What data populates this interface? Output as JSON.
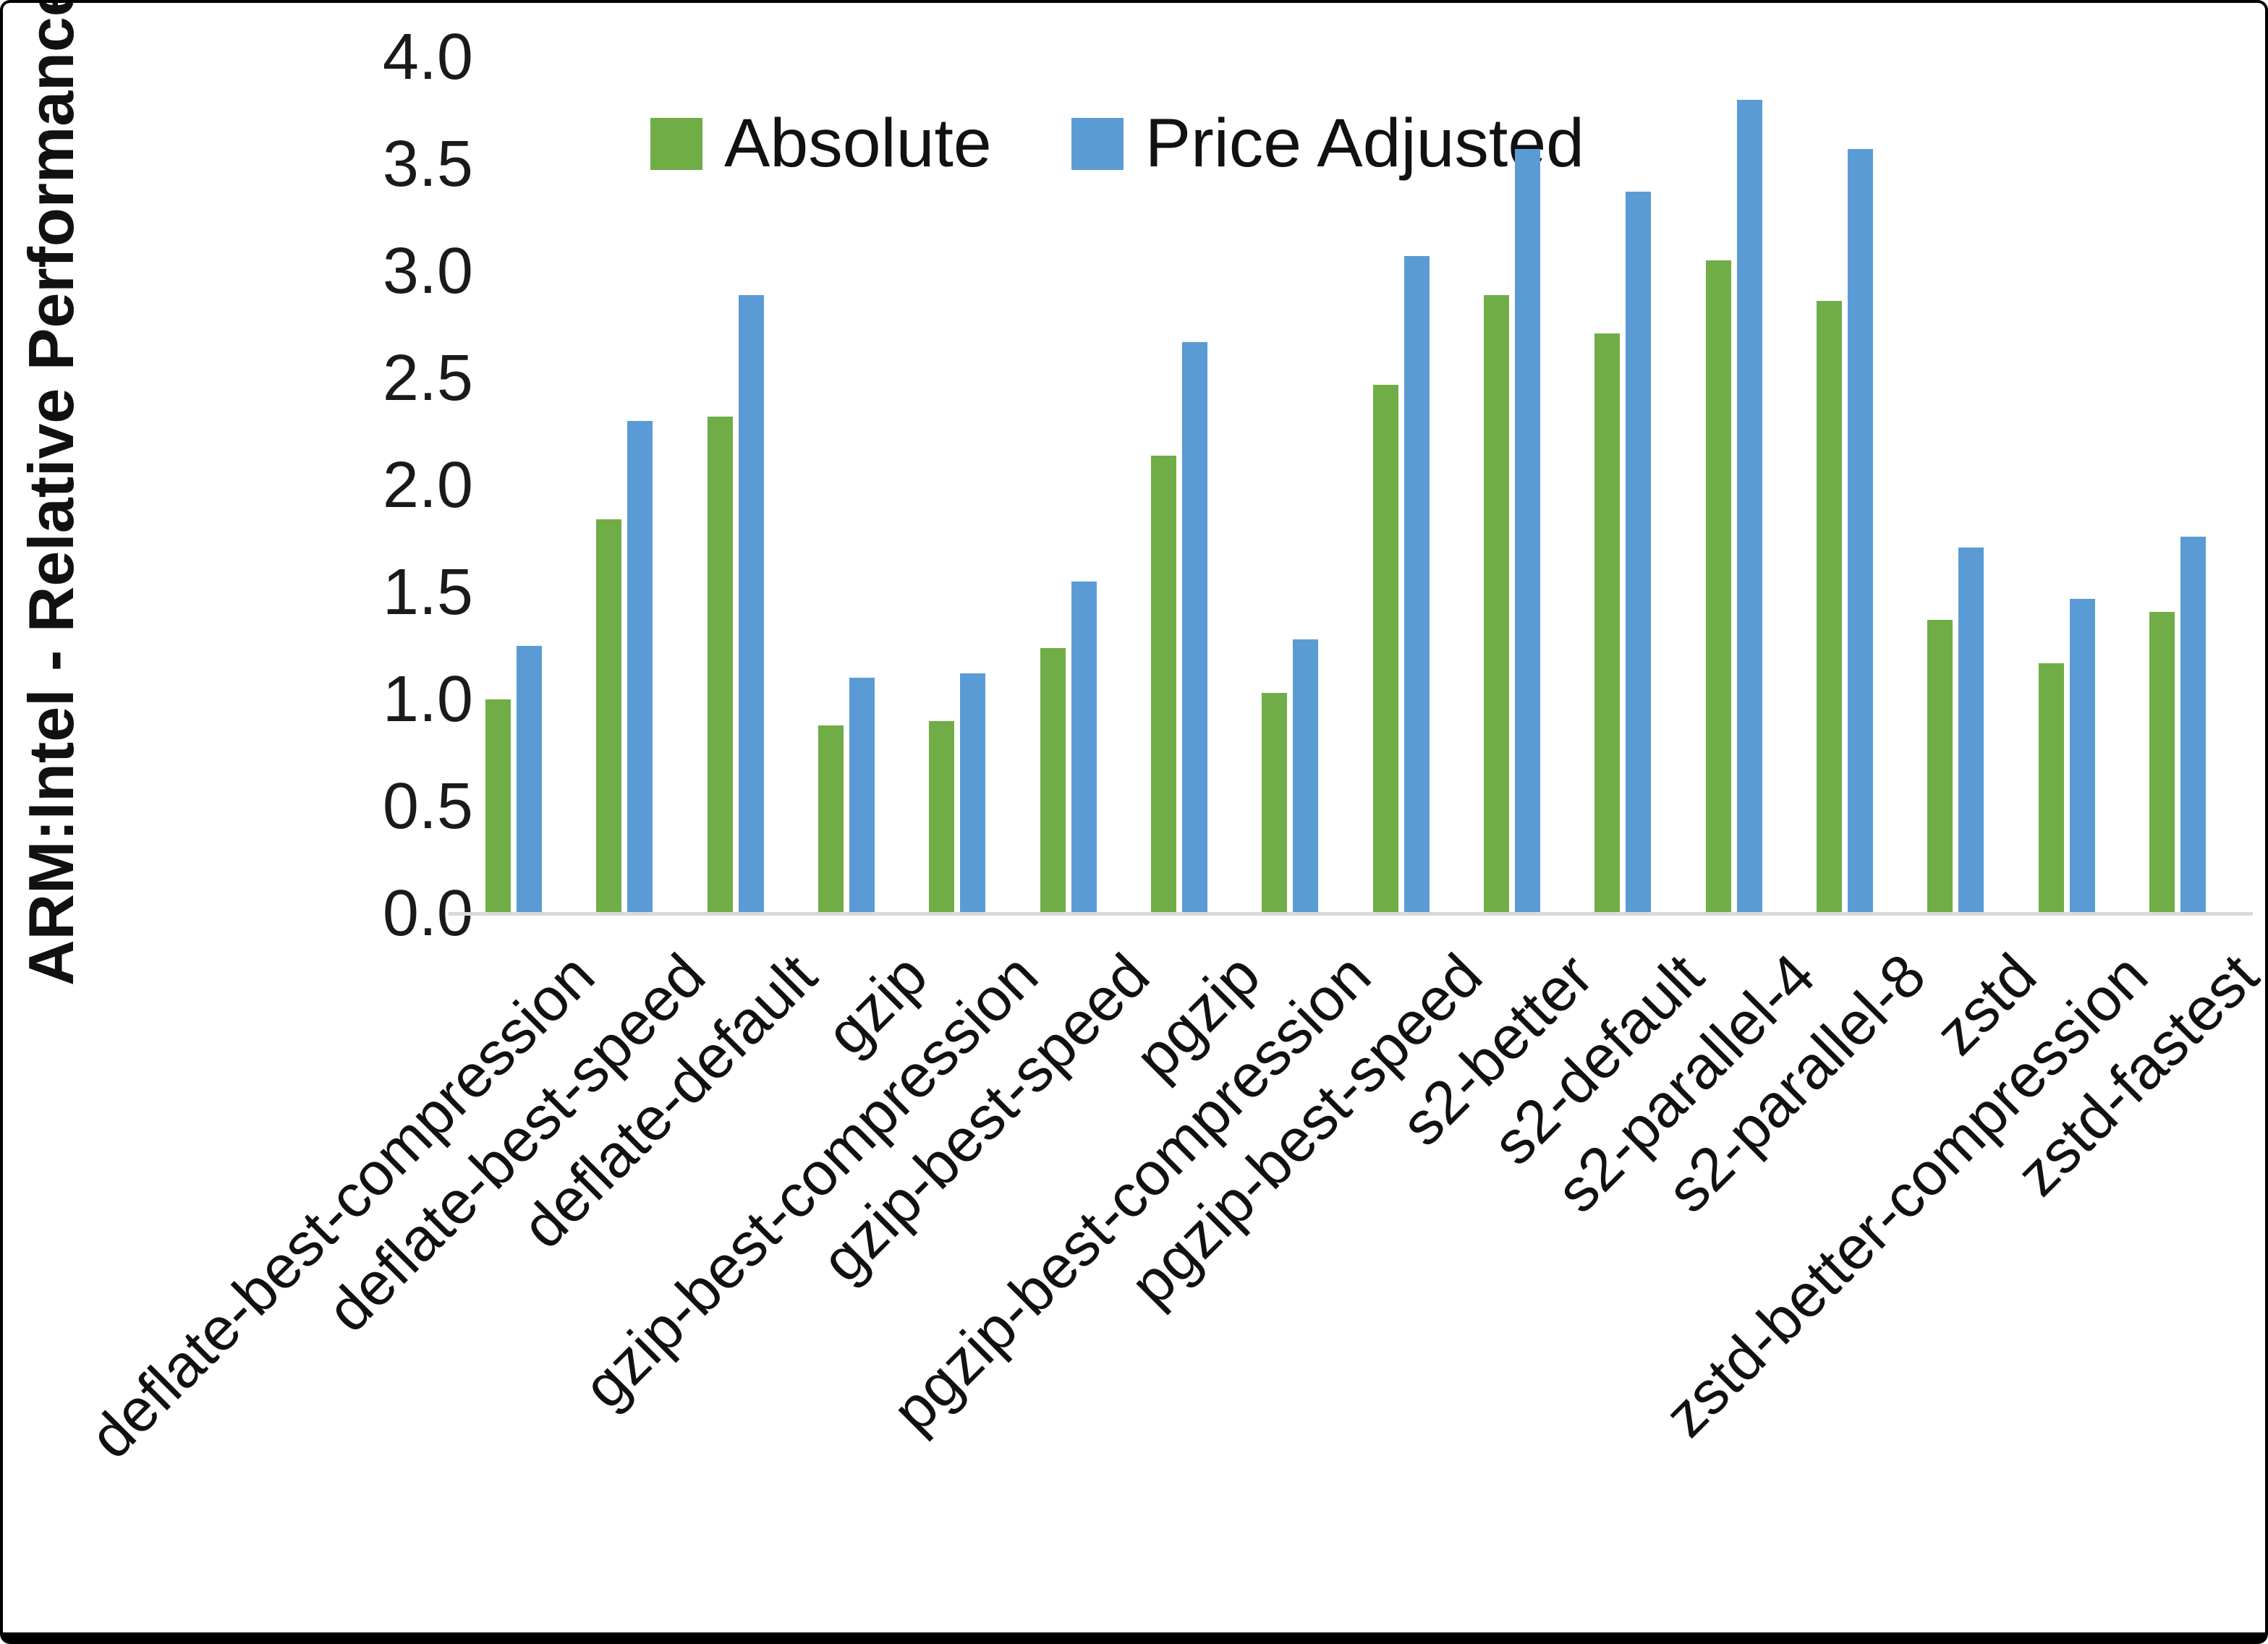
{
  "chart_data": {
    "type": "bar",
    "title": "",
    "ylabel": "ARM:Intel - Relative Performance",
    "xlabel": "",
    "ylim": [
      0.0,
      4.0
    ],
    "ytick_step": 0.5,
    "grid": false,
    "legend_position": "top-center",
    "categories": [
      "deflate-best-compression",
      "deflate-best-speed",
      "deflate-default",
      "gzip",
      "gzip-best-compression",
      "gzip-best-speed",
      "pgzip",
      "pgzip-best-compression",
      "pgzip-best-speed",
      "s2-better",
      "s2-default",
      "s2-parallel-4",
      "s2-parallel-8",
      "zstd",
      "zstd-better-compression",
      "zstd-fastest"
    ],
    "series": [
      {
        "name": "Absolute",
        "color": "#70AD47",
        "values": [
          1.0,
          1.84,
          2.32,
          0.88,
          0.9,
          1.24,
          2.14,
          1.03,
          2.47,
          2.89,
          2.71,
          3.05,
          2.86,
          1.37,
          1.17,
          1.41
        ]
      },
      {
        "name": "Price Adjusted",
        "color": "#5B9BD5",
        "values": [
          1.25,
          2.3,
          2.89,
          1.1,
          1.12,
          1.55,
          2.67,
          1.28,
          3.07,
          3.57,
          3.37,
          3.8,
          3.57,
          1.71,
          1.47,
          1.76
        ]
      }
    ]
  },
  "legend": {
    "absolute_label": "Absolute",
    "price_adjusted_label": "Price Adjusted"
  },
  "axis": {
    "y_title": "ARM:Intel - Relative Performance",
    "y_ticks": [
      "4.0",
      "3.5",
      "3.0",
      "2.5",
      "2.0",
      "1.5",
      "1.0",
      "0.5",
      "0.0"
    ]
  },
  "colors": {
    "absolute": "#70AD47",
    "price_adjusted": "#5B9BD5",
    "axis_line": "#d9d9d9",
    "text": "#111111",
    "border": "#000000"
  }
}
